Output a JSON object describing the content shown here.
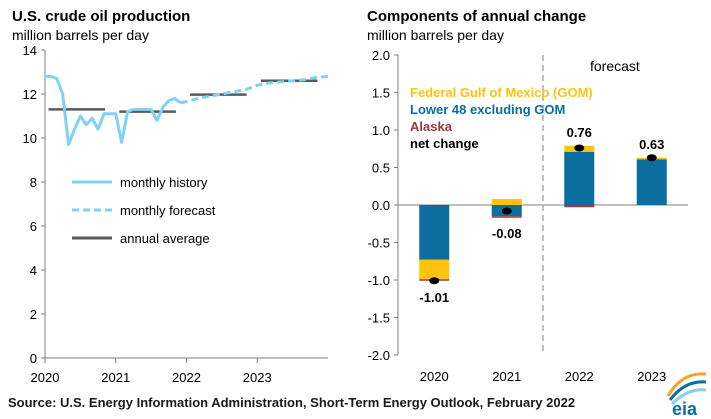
{
  "left_chart": {
    "title": "U.S. crude oil production",
    "subtitle": "million barrels per day",
    "legend": [
      "monthly history",
      "monthly forecast",
      "annual average"
    ]
  },
  "right_chart": {
    "title": "Components of annual change",
    "subtitle": "million barrels per day",
    "forecast_label": "forecast",
    "legend": [
      "Federal Gulf  of Mexico (GOM)",
      "Lower 48 excluding GOM",
      "Alaska",
      "net change"
    ]
  },
  "source": "Source: U.S. Energy Information Administration, Short-Term Energy Outlook, February 2022",
  "logo_text": "eia",
  "colors": {
    "history": "#7fd1f5",
    "forecast": "#7fd1f5",
    "annual": "#5a5a5a",
    "gom": "#ffc20e",
    "lower48": "#0b6e9e",
    "alaska": "#a33340",
    "net": "#000000",
    "divider": "#aaaaaa"
  },
  "chart_data": [
    {
      "type": "line",
      "title": "U.S. crude oil production",
      "ylabel": "million barrels per day",
      "xlim": [
        2020,
        2024
      ],
      "ylim": [
        0,
        14
      ],
      "x_ticks": [
        "2020",
        "2021",
        "2022",
        "2023"
      ],
      "y_ticks": [
        "0",
        "2",
        "4",
        "6",
        "8",
        "10",
        "12",
        "14"
      ],
      "grid": false,
      "legend_position": "lower-left",
      "series": [
        {
          "name": "monthly history",
          "x": [
            2020.0,
            2020.083,
            2020.167,
            2020.25,
            2020.333,
            2020.417,
            2020.5,
            2020.583,
            2020.667,
            2020.75,
            2020.833,
            2020.917,
            2021.0,
            2021.083,
            2021.167,
            2021.25,
            2021.333,
            2021.417,
            2021.5,
            2021.583,
            2021.667,
            2021.75,
            2021.833,
            2021.917
          ],
          "y": [
            12.8,
            12.8,
            12.7,
            12.0,
            9.7,
            10.4,
            11.0,
            10.6,
            10.9,
            10.4,
            11.1,
            11.1,
            11.1,
            9.8,
            11.2,
            11.3,
            11.3,
            11.3,
            11.3,
            10.8,
            11.4,
            11.7,
            11.8,
            11.6
          ]
        },
        {
          "name": "monthly forecast",
          "x": [
            2021.917,
            2022.0,
            2022.167,
            2022.333,
            2022.5,
            2022.667,
            2022.833,
            2023.0,
            2023.167,
            2023.333,
            2023.5,
            2023.667,
            2023.833,
            2024.0
          ],
          "y": [
            11.6,
            11.65,
            11.8,
            11.9,
            12.0,
            12.1,
            12.2,
            12.4,
            12.5,
            12.55,
            12.6,
            12.65,
            12.75,
            12.8
          ]
        },
        {
          "name": "annual average",
          "segments": [
            {
              "x": [
                2020.05,
                2020.85
              ],
              "y": [
                11.3,
                11.3
              ]
            },
            {
              "x": [
                2021.05,
                2021.85
              ],
              "y": [
                11.2,
                11.2
              ]
            },
            {
              "x": [
                2022.05,
                2022.85
              ],
              "y": [
                11.97,
                11.97
              ]
            },
            {
              "x": [
                2023.05,
                2023.85
              ],
              "y": [
                12.6,
                12.6
              ]
            }
          ]
        }
      ]
    },
    {
      "type": "bar",
      "stacked": true,
      "title": "Components of annual change",
      "ylabel": "million barrels per day",
      "categories": [
        "2020",
        "2021",
        "2022",
        "2023"
      ],
      "ylim": [
        -2.0,
        2.0
      ],
      "y_ticks": [
        "2.0",
        "1.5",
        "1.0",
        "0.5",
        "0.0",
        "-0.5",
        "-1.0",
        "-1.5",
        "-2.0"
      ],
      "grid": false,
      "legend_position": "top-left",
      "forecast_divider_after": "2021",
      "series": [
        {
          "name": "Federal Gulf  of Mexico (GOM)",
          "values": [
            -0.26,
            0.08,
            0.08,
            0.02
          ]
        },
        {
          "name": "Lower 48 excluding GOM",
          "values": [
            -0.73,
            -0.15,
            0.71,
            0.61
          ]
        },
        {
          "name": "Alaska",
          "values": [
            -0.02,
            -0.01,
            -0.03,
            0.0
          ]
        },
        {
          "name": "net change",
          "values": [
            -1.01,
            -0.08,
            0.76,
            0.63
          ],
          "labels": [
            "-1.01",
            "-0.08",
            "0.76",
            "0.63"
          ]
        }
      ]
    }
  ]
}
